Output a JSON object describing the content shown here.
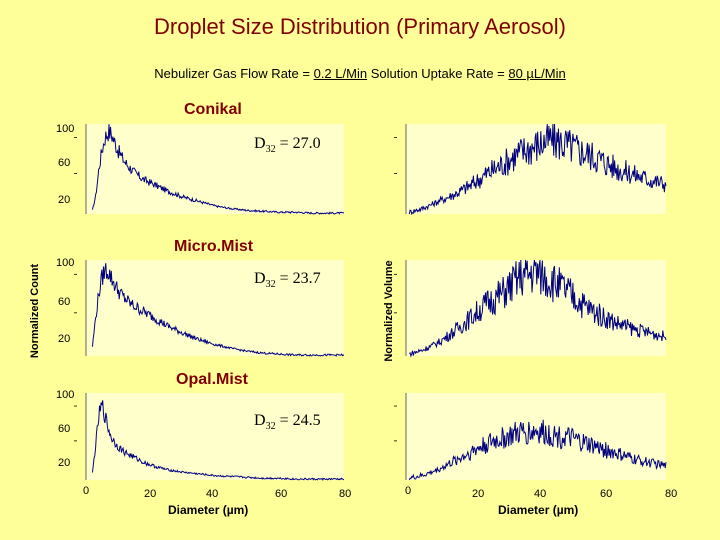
{
  "title": "Droplet  Size Distribution (Primary Aerosol)",
  "subtitle": {
    "prefix": "Nebulizer Gas Flow Rate = ",
    "gas_rate": "0.2 L/Min",
    "middle": "  Solution Uptake Rate = ",
    "uptake_rate": "80 µL/Min"
  },
  "colors": {
    "background": "#ffff99",
    "title": "#800000",
    "series": "#000080",
    "plot_bg": "#ffffcc"
  },
  "chart_data": [
    {
      "type": "line",
      "panel": "count",
      "title": "Conikal",
      "annotation_label": "D",
      "annotation_sub": "32",
      "annotation_value": " = 27.0",
      "ylabel": "Normalized Count",
      "yticks": [
        "100",
        "60",
        "20"
      ],
      "xlim": [
        0,
        80
      ],
      "ylim": [
        0,
        100
      ],
      "series": [
        {
          "x": [
            2,
            3,
            4,
            5,
            6,
            7,
            8,
            10,
            12,
            15,
            18,
            21,
            25,
            30,
            35,
            40,
            45,
            50,
            55,
            60,
            65,
            70,
            75,
            80
          ],
          "y": [
            4,
            20,
            50,
            72,
            86,
            92,
            88,
            70,
            58,
            46,
            38,
            33,
            26,
            19,
            14,
            9,
            6,
            4,
            3,
            2,
            2,
            1,
            1,
            1
          ]
        }
      ]
    },
    {
      "type": "line",
      "panel": "volume",
      "title": "",
      "xlim": [
        0,
        80
      ],
      "ylim": [
        0,
        100
      ],
      "series": [
        {
          "x": [
            1,
            5,
            10,
            15,
            20,
            25,
            30,
            35,
            40,
            45,
            50,
            55,
            60,
            65,
            70,
            75,
            80
          ],
          "y": [
            2,
            6,
            14,
            22,
            32,
            45,
            56,
            68,
            76,
            83,
            76,
            68,
            60,
            50,
            44,
            38,
            33
          ]
        }
      ]
    },
    {
      "type": "line",
      "panel": "count",
      "title": "Micro.Mist",
      "annotation_label": "D",
      "annotation_sub": "32",
      "annotation_value": " = 23.7",
      "ylabel": "Normalized Count",
      "yticks": [
        "100",
        "60",
        "20"
      ],
      "xlim": [
        0,
        80
      ],
      "ylim": [
        0,
        100
      ],
      "series": [
        {
          "x": [
            2,
            3,
            4,
            5,
            6,
            7,
            8,
            10,
            12,
            14,
            17,
            20,
            23,
            26,
            30,
            35,
            40,
            45,
            50,
            55,
            60,
            65,
            70,
            80
          ],
          "y": [
            10,
            40,
            66,
            82,
            90,
            88,
            80,
            68,
            60,
            54,
            48,
            42,
            36,
            30,
            24,
            17,
            12,
            8,
            5,
            3,
            2,
            1,
            1,
            1
          ]
        }
      ]
    },
    {
      "type": "line",
      "panel": "volume",
      "title": "",
      "ylabel": "Normalized Volume",
      "xlim": [
        0,
        80
      ],
      "ylim": [
        0,
        100
      ],
      "series": [
        {
          "x": [
            1,
            5,
            10,
            15,
            20,
            25,
            30,
            35,
            40,
            45,
            50,
            55,
            60,
            65,
            70,
            75,
            80
          ],
          "y": [
            2,
            6,
            14,
            26,
            40,
            55,
            66,
            82,
            88,
            78,
            66,
            52,
            42,
            34,
            28,
            24,
            20
          ]
        }
      ]
    },
    {
      "type": "line",
      "panel": "count",
      "title": "Opal.Mist",
      "annotation_label": "D",
      "annotation_sub": "32",
      "annotation_value": " = 24.5",
      "ylabel": "Normalized Count",
      "yticks": [
        "100",
        "60",
        "20"
      ],
      "xlim": [
        0,
        80
      ],
      "ylim": [
        0,
        100
      ],
      "xlabel": "Diameter (µm)",
      "xticks": [
        "0",
        "20",
        "40",
        "60",
        "80"
      ],
      "series": [
        {
          "x": [
            2,
            3,
            4,
            5,
            6,
            7,
            8,
            10,
            12,
            15,
            18,
            21,
            25,
            30,
            35,
            40,
            45,
            50,
            55,
            60,
            65,
            70,
            80
          ],
          "y": [
            8,
            40,
            74,
            86,
            72,
            58,
            48,
            38,
            32,
            26,
            20,
            16,
            12,
            9,
            7,
            5,
            4,
            3,
            2,
            2,
            1,
            1,
            1
          ]
        }
      ]
    },
    {
      "type": "line",
      "panel": "volume",
      "title": "",
      "xlim": [
        0,
        80
      ],
      "ylim": [
        0,
        100
      ],
      "xlabel": "Diameter (µm)",
      "xticks": [
        "0",
        "20",
        "40",
        "60",
        "80"
      ],
      "series": [
        {
          "x": [
            1,
            5,
            10,
            15,
            20,
            25,
            30,
            35,
            40,
            45,
            50,
            55,
            60,
            65,
            70,
            75,
            80
          ],
          "y": [
            2,
            5,
            12,
            22,
            32,
            42,
            48,
            54,
            56,
            52,
            48,
            42,
            36,
            30,
            24,
            20,
            16
          ]
        }
      ]
    }
  ]
}
